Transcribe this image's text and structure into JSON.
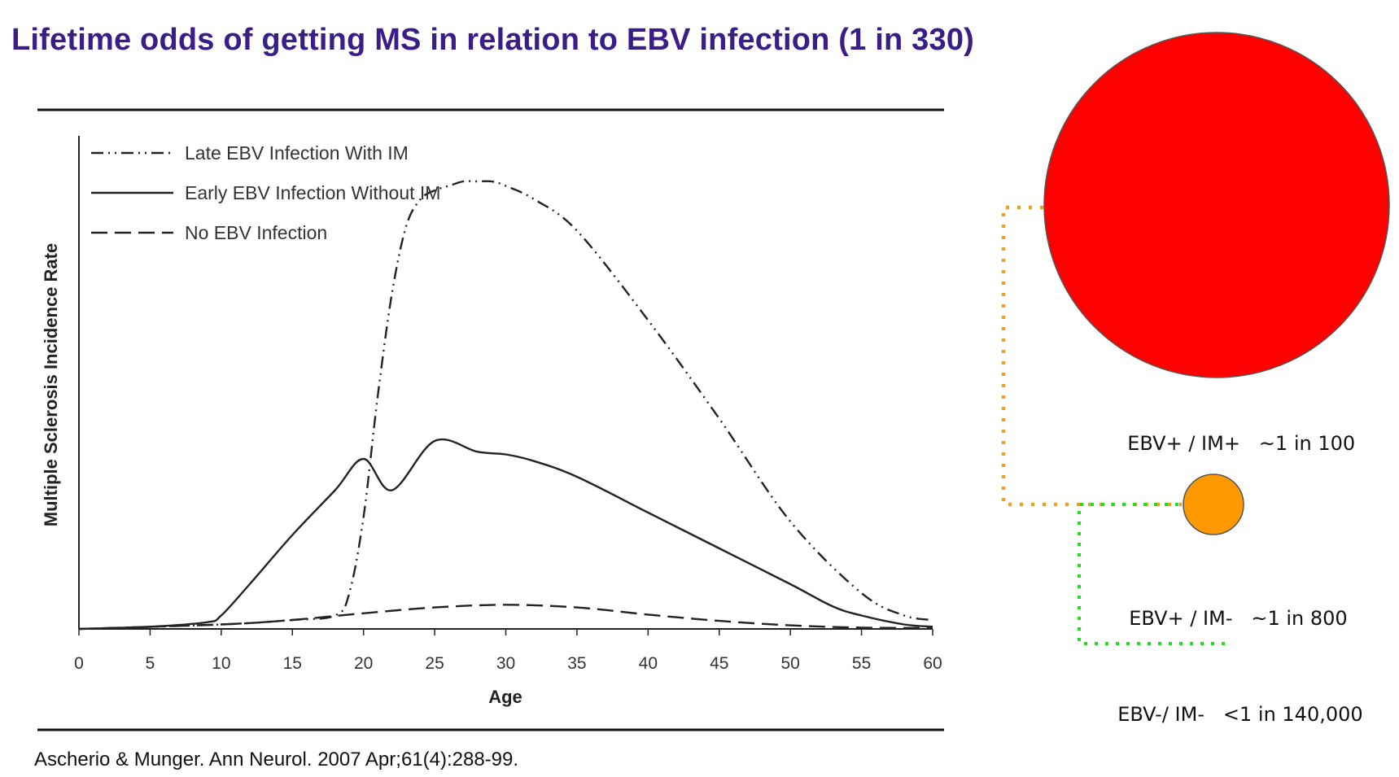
{
  "slide": {
    "title": "Lifetime odds of getting MS in relation to EBV infection (1 in 330)",
    "citation": "Ascherio & Munger. Ann Neurol. 2007 Apr;61(4):288-99."
  },
  "chart_data": {
    "type": "line",
    "xlabel": "Age",
    "ylabel": "Multiple Sclerosis Incidence Rate",
    "xlim": [
      0,
      60
    ],
    "ylim": [
      0,
      100
    ],
    "xticks": [
      0,
      5,
      10,
      15,
      20,
      25,
      30,
      35,
      40,
      45,
      50,
      55,
      60
    ],
    "grid": false,
    "legend_position": "top-left",
    "series": [
      {
        "name": "Late EBV Infection With IM",
        "style": "dash-dot-dot",
        "x": [
          0,
          10,
          15,
          18,
          19,
          20,
          21,
          22,
          23,
          24,
          25,
          26,
          27,
          28,
          29,
          30,
          32,
          35,
          40,
          45,
          50,
          55,
          58,
          60
        ],
        "y": [
          0,
          1,
          2,
          3,
          8,
          25,
          52,
          75,
          90,
          96,
          98,
          99,
          100,
          100,
          100,
          99,
          96,
          89,
          69,
          47,
          24,
          8,
          3,
          2
        ]
      },
      {
        "name": "Early EBV Infection Without IM",
        "style": "solid",
        "x": [
          0,
          5,
          9,
          10,
          12,
          15,
          18,
          20,
          22,
          25,
          28,
          30,
          32,
          35,
          40,
          45,
          50,
          53,
          55,
          58,
          60
        ],
        "y": [
          0,
          0.5,
          1.5,
          3,
          10,
          21,
          31,
          38,
          31,
          42,
          39.6,
          39,
          37.5,
          34,
          26,
          18,
          10,
          5,
          3,
          1,
          0.5
        ]
      },
      {
        "name": "No EBV Infection",
        "style": "dashed",
        "x": [
          0,
          10,
          15,
          20,
          25,
          30,
          35,
          40,
          45,
          50,
          55,
          60
        ],
        "y": [
          0,
          1,
          2,
          3.5,
          4.8,
          5.4,
          4.8,
          3.2,
          1.8,
          0.8,
          0.3,
          0.2
        ]
      }
    ]
  },
  "risk_panel": {
    "colors": {
      "large": "#ff0000",
      "medium": "#ff9900",
      "orange_connector": "#f0a020",
      "green_connector": "#22dd22"
    },
    "items": [
      {
        "group": "EBV+ / IM+",
        "odds": "~1 in 100"
      },
      {
        "group": "EBV+ / IM-",
        "odds": "~1 in 800"
      },
      {
        "group": "EBV-/ IM-",
        "odds": "<1 in 140,000"
      }
    ]
  }
}
